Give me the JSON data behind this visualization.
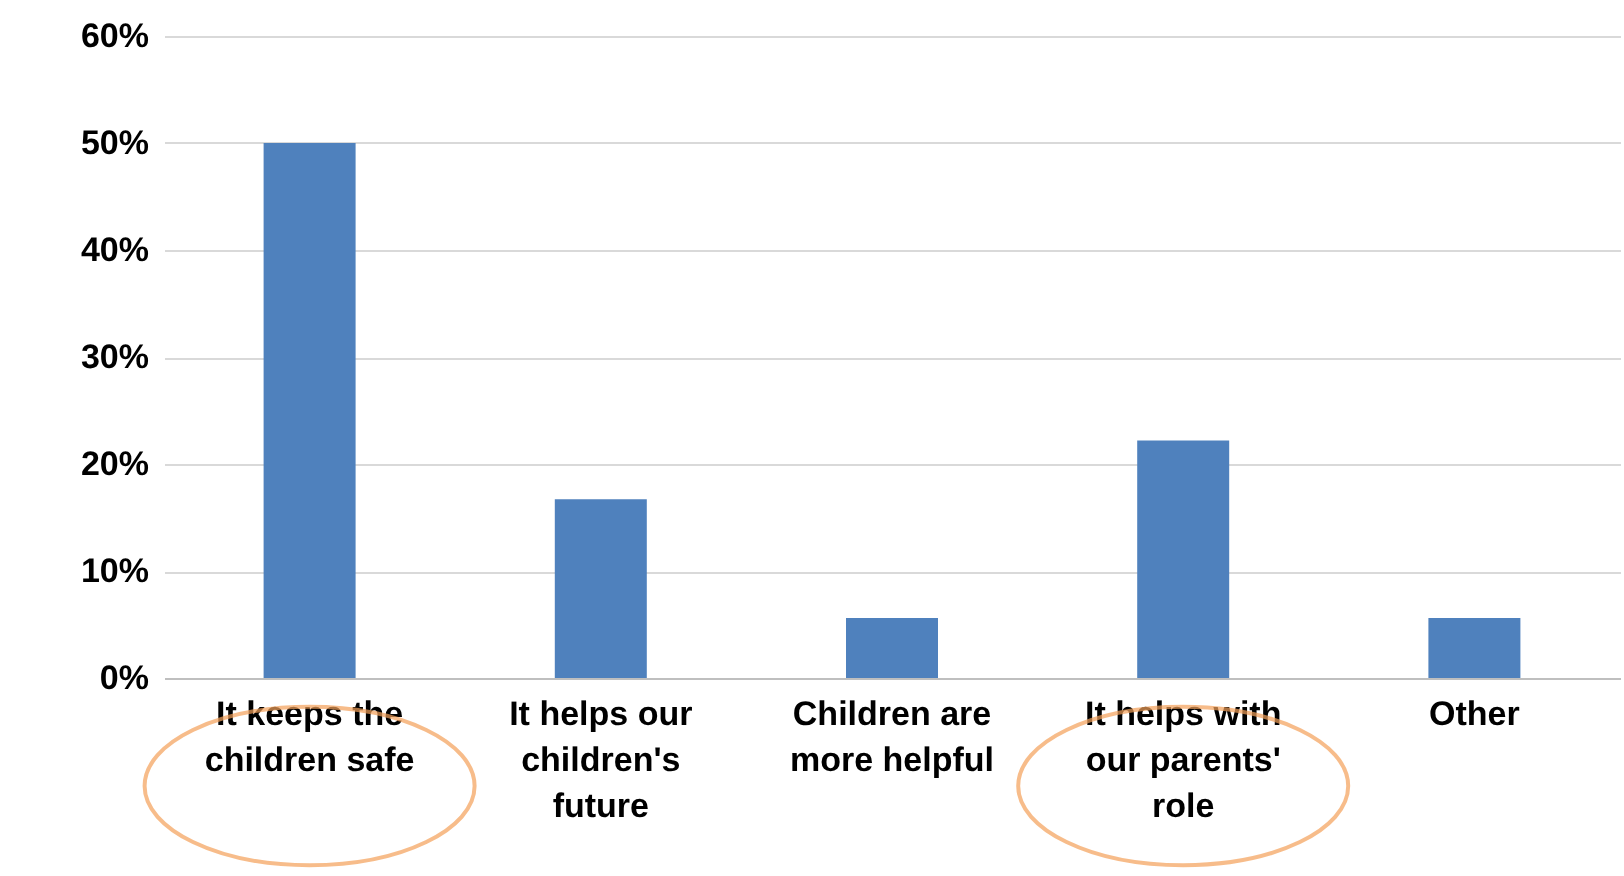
{
  "chart_data": {
    "type": "bar",
    "categories": [
      "It keeps the children safe",
      "It helps our children's future",
      "Children are more helpful",
      "It helps with our parents' role",
      "Other"
    ],
    "values": [
      50,
      16.7,
      5.6,
      22.2,
      5.6
    ],
    "color": "#4f81bd",
    "ylim": [
      0,
      60
    ],
    "yticks": [
      {
        "value": 0,
        "label": "0%"
      },
      {
        "value": 10,
        "label": "10%"
      },
      {
        "value": 20,
        "label": "20%"
      },
      {
        "value": 30,
        "label": "30%"
      },
      {
        "value": 40,
        "label": "40%"
      },
      {
        "value": 50,
        "label": "50%"
      },
      {
        "value": 60,
        "label": "60%"
      }
    ],
    "grid": "y"
  }
}
